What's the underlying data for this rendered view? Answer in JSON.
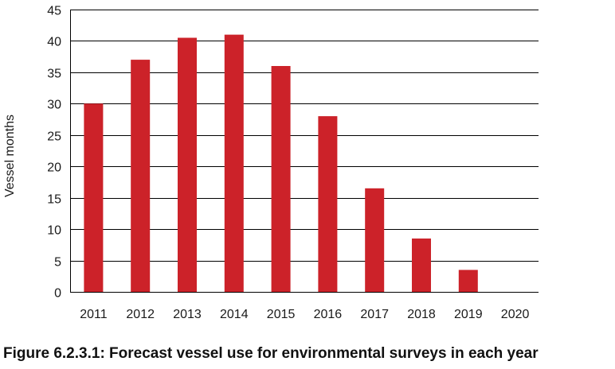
{
  "figure_caption": "Figure 6.2.3.1: Forecast vessel use for environmental surveys in each year",
  "colors": {
    "bar": "#cc2229",
    "grid": "#000000",
    "text": "#1a1a1a"
  },
  "chart_data": {
    "type": "bar",
    "categories": [
      "2011",
      "2012",
      "2013",
      "2014",
      "2015",
      "2016",
      "2017",
      "2018",
      "2019",
      "2020"
    ],
    "values": [
      30,
      37,
      40.5,
      41,
      36,
      28,
      16.5,
      8.5,
      3.5,
      0
    ],
    "xlabel": "",
    "ylabel": "Vessel months",
    "ylim": [
      0,
      45
    ],
    "yticks": [
      0,
      5,
      10,
      15,
      20,
      25,
      30,
      35,
      40,
      45
    ],
    "grid": "horizontal",
    "legend": "none"
  }
}
